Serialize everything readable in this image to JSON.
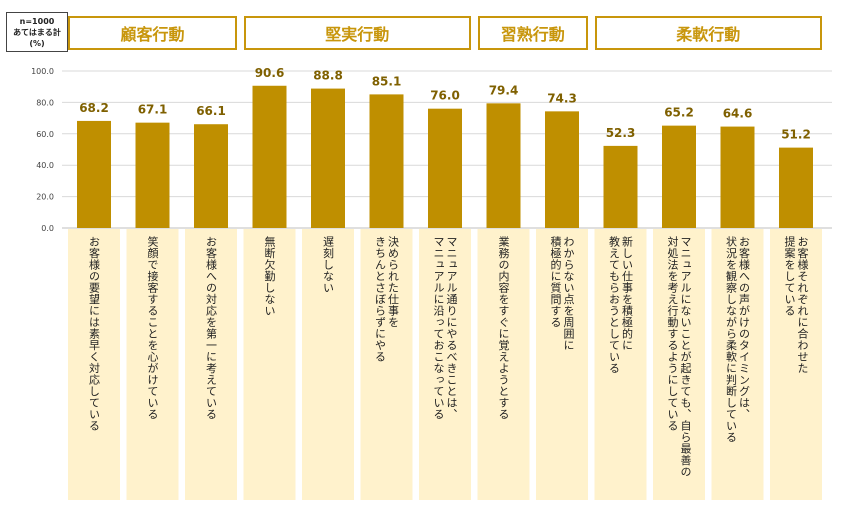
{
  "note": {
    "line1": "n=1000",
    "line2": "あてはまる計",
    "line3": "(%)"
  },
  "colors": {
    "bar": "#bf8f00",
    "label_bg": "#fff2cc",
    "header_border": "#c8960c",
    "grid": "#d9d9d9"
  },
  "chart_data": {
    "type": "bar",
    "ylim": [
      0,
      100
    ],
    "yticks": [
      "0.0",
      "20.0",
      "40.0",
      "60.0",
      "80.0",
      "100.0"
    ],
    "groups": [
      {
        "label": "顧客行動",
        "start": 0,
        "end": 2
      },
      {
        "label": "堅実行動",
        "start": 3,
        "end": 6
      },
      {
        "label": "習熟行動",
        "start": 7,
        "end": 8
      },
      {
        "label": "柔軟行動",
        "start": 9,
        "end": 12
      }
    ],
    "categories": [
      [
        "お客様の要望には素早く対応している"
      ],
      [
        "笑顔で接客することを心がけている"
      ],
      [
        "お客様への対応を第一に考えている"
      ],
      [
        "無断欠勤しない"
      ],
      [
        "遅刻しない"
      ],
      [
        "決められた仕事を",
        "きちんとさぼらずにやる"
      ],
      [
        "マニュアル通りにやるべきことは、",
        "マニュアルに沿っておこなっている"
      ],
      [
        "業務の内容をすぐに覚えようとする"
      ],
      [
        "わからない点を周囲に",
        "積極的に質問する"
      ],
      [
        "新しい仕事を積極的に",
        "教えてもらおうとしている"
      ],
      [
        "マニュアルにないことが起きても、自ら最善の",
        "対処法を考え行動するようにしている"
      ],
      [
        "お客様への声がけのタイミングは、",
        "状況を観察しながら柔軟に判断している"
      ],
      [
        "お客様それぞれに合わせた",
        "提案をしている"
      ]
    ],
    "values": [
      68.2,
      67.1,
      66.1,
      90.6,
      88.8,
      85.1,
      76.0,
      79.4,
      74.3,
      52.3,
      65.2,
      64.6,
      51.2
    ],
    "value_labels": [
      "68.2",
      "67.1",
      "66.1",
      "90.6",
      "88.8",
      "85.1",
      "76.0",
      "79.4",
      "74.3",
      "52.3",
      "65.2",
      "64.6",
      "51.2"
    ]
  }
}
